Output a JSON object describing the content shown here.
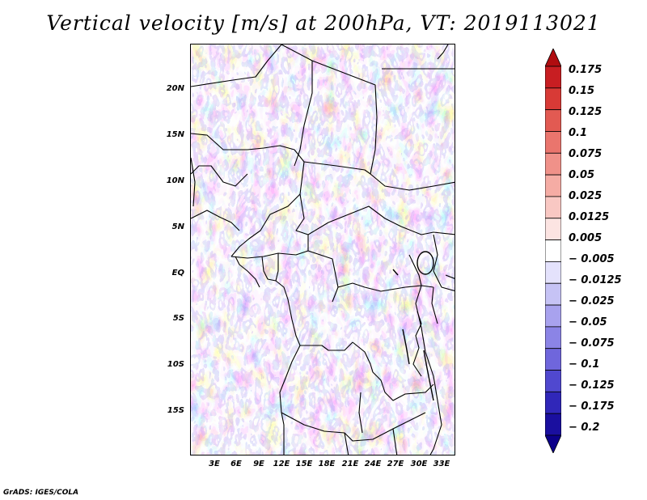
{
  "title": "Vertical velocity [m/s] at 200hPa, VT: 2019113021",
  "credit": "GrADS: IGES/COLA",
  "map": {
    "lat_labels": [
      "20N",
      "15N",
      "10N",
      "5N",
      "EQ",
      "5S",
      "10S",
      "15S"
    ],
    "lat_values": [
      20,
      15,
      10,
      5,
      0,
      -5,
      -10,
      -15
    ],
    "lon_labels": [
      "3E",
      "6E",
      "9E",
      "12E",
      "15E",
      "18E",
      "21E",
      "24E",
      "27E",
      "30E",
      "33E"
    ],
    "lon_values": [
      3,
      6,
      9,
      12,
      15,
      18,
      21,
      24,
      27,
      30,
      33
    ],
    "lon_range": [
      0.2,
      35.0
    ],
    "lat_range": [
      -19.8,
      24.9
    ]
  },
  "colorbar": {
    "labels": [
      "0.175",
      "0.15",
      "0.125",
      "0.1",
      "0.075",
      "0.05",
      "0.025",
      "0.0125",
      "0.005",
      "− 0.005",
      "− 0.0125",
      "− 0.025",
      "− 0.05",
      "− 0.075",
      "− 0.1",
      "− 0.125",
      "− 0.175",
      "− 0.2"
    ],
    "colors": [
      "#b00d10",
      "#c81e22",
      "#d83a36",
      "#e25a52",
      "#ea756d",
      "#f09189",
      "#f5aca4",
      "#f9c8c3",
      "#fce4e2",
      "#ffffff",
      "#e4e2fc",
      "#c6c3f5",
      "#a8a2ee",
      "#8b84e6",
      "#6f66dc",
      "#5048cf",
      "#3027b9",
      "#1a0f9f",
      "#0c008a"
    ]
  },
  "chart_data": {
    "type": "heatmap",
    "title": "Vertical velocity [m/s] at 200hPa, VT: 2019113021",
    "xlabel": "",
    "ylabel": "",
    "x_ticks": [
      "3E",
      "6E",
      "9E",
      "12E",
      "15E",
      "18E",
      "21E",
      "24E",
      "27E",
      "30E",
      "33E"
    ],
    "y_ticks": [
      "20N",
      "15N",
      "10N",
      "5N",
      "EQ",
      "5S",
      "10S",
      "15S"
    ],
    "contour_levels": [
      -0.2,
      -0.175,
      -0.125,
      -0.1,
      -0.075,
      -0.05,
      -0.025,
      -0.0125,
      -0.005,
      0.005,
      0.0125,
      0.025,
      0.05,
      0.075,
      0.1,
      0.125,
      0.15,
      0.175
    ],
    "units": "m/s",
    "level": "200hPa",
    "valid_time": "2019113021"
  }
}
